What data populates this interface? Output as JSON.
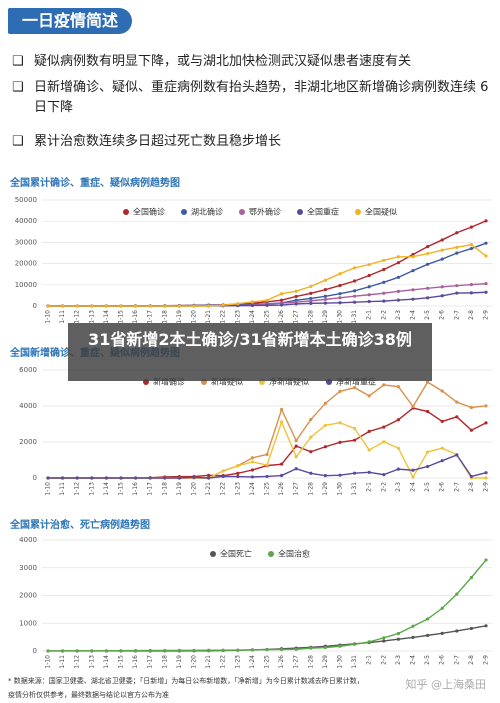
{
  "header": {
    "title": "一日疫情简述"
  },
  "bullets": [
    "疑似病例数有明显下降，或与湖北加快检测武汉疑似患者速度有关",
    "日新增确诊、疑似、重症病例数有抬头趋势，非湖北地区新增确诊病例数连续 6 日下降",
    "累计治愈数连续多日超过死亡数且稳步增长"
  ],
  "banner": "31省新增2本土确诊/31省新增本土确诊38例",
  "footnote": [
    "* 数据来源：国家卫健委、湖北省卫健委；「日新增」为每日公布新增数，「净新增」为今日累计数减去昨日累计数，",
    "疫情分析仅供参考，最终数据与结论以官方公布为准"
  ],
  "watermark": "知乎 @上海桑田",
  "chart_data": [
    {
      "type": "line",
      "title": "全国累计确诊、重症、疑似病例趋势图",
      "categories": [
        "1-10",
        "1-11",
        "1-12",
        "1-13",
        "1-14",
        "1-15",
        "1-16",
        "1-17",
        "1-18",
        "1-19",
        "1-20",
        "1-21",
        "1-22",
        "1-23",
        "1-24",
        "1-25",
        "1-26",
        "1-27",
        "1-28",
        "1-29",
        "1-30",
        "1-31",
        "2-1",
        "2-2",
        "2-3",
        "2-4",
        "2-5",
        "2-6",
        "2-7",
        "2-8",
        "2-9"
      ],
      "ylim": [
        0,
        50000
      ],
      "yticks": [
        0,
        10000,
        20000,
        30000,
        40000,
        50000
      ],
      "grid": true,
      "series": [
        {
          "name": "全国确诊",
          "color": "#b3262b",
          "values": [
            41,
            41,
            41,
            41,
            41,
            41,
            45,
            62,
            121,
            198,
            291,
            440,
            571,
            830,
            1287,
            1975,
            2744,
            4515,
            5974,
            7711,
            9692,
            11791,
            14380,
            17205,
            20438,
            24324,
            28018,
            31161,
            34546,
            37198,
            40171
          ]
        },
        {
          "name": "湖北确诊",
          "color": "#3c5aa6",
          "values": [
            41,
            41,
            41,
            41,
            41,
            41,
            45,
            62,
            121,
            198,
            270,
            375,
            444,
            549,
            729,
            1052,
            1423,
            2714,
            3554,
            4586,
            5806,
            7153,
            9074,
            11177,
            13522,
            16678,
            19665,
            22112,
            24953,
            27100,
            29631
          ]
        },
        {
          "name": "鄂外确诊",
          "color": "#a8619a",
          "values": [
            0,
            0,
            0,
            0,
            0,
            0,
            0,
            0,
            0,
            0,
            21,
            65,
            127,
            281,
            558,
            923,
            1321,
            1801,
            2420,
            3125,
            3886,
            4638,
            5306,
            6028,
            6916,
            7646,
            8353,
            9049,
            9593,
            10098,
            10540
          ]
        },
        {
          "name": "全国重症",
          "color": "#5b4a9b",
          "values": [
            0,
            0,
            0,
            0,
            0,
            0,
            0,
            0,
            0,
            0,
            35,
            9,
            95,
            177,
            237,
            324,
            461,
            976,
            1239,
            1370,
            1527,
            1795,
            2110,
            2296,
            2788,
            3219,
            3859,
            4821,
            6101,
            6188,
            6484
          ]
        },
        {
          "name": "全国疑似",
          "color": "#f0b323",
          "values": [
            0,
            0,
            0,
            0,
            0,
            0,
            0,
            0,
            0,
            0,
            0,
            0,
            393,
            1072,
            1965,
            2684,
            5794,
            6973,
            9239,
            12167,
            15238,
            17988,
            19544,
            21558,
            23214,
            23260,
            24702,
            26359,
            27657,
            28942,
            23589
          ]
        }
      ]
    },
    {
      "type": "line",
      "title": "全国新增确诊、重症、疑似病例趋势图",
      "categories": [
        "1-10",
        "1-11",
        "1-12",
        "1-13",
        "1-14",
        "1-15",
        "1-16",
        "1-17",
        "1-18",
        "1-19",
        "1-20",
        "1-21",
        "1-22",
        "1-23",
        "1-24",
        "1-25",
        "1-26",
        "1-27",
        "1-28",
        "1-29",
        "1-30",
        "1-31",
        "2-1",
        "2-2",
        "2-3",
        "2-4",
        "2-5",
        "2-6",
        "2-7",
        "2-8",
        "2-9"
      ],
      "ylim": [
        0,
        6000
      ],
      "yticks": [
        0,
        2000,
        4000,
        6000
      ],
      "grid": true,
      "series": [
        {
          "name": "新增确诊",
          "color": "#b3262b",
          "values": [
            0,
            0,
            0,
            0,
            0,
            0,
            4,
            17,
            59,
            77,
            77,
            149,
            131,
            259,
            444,
            688,
            769,
            1771,
            1459,
            1737,
            1982,
            2102,
            2590,
            2829,
            3235,
            3887,
            3694,
            3143,
            3399,
            2656,
            3062
          ]
        },
        {
          "name": "新增疑似",
          "color": "#d9904a",
          "values": [
            0,
            0,
            0,
            0,
            0,
            0,
            0,
            0,
            0,
            0,
            0,
            0,
            393,
            680,
            1118,
            1309,
            3806,
            2077,
            3248,
            4148,
            4812,
            5019,
            4562,
            5173,
            5072,
            3971,
            5328,
            4833,
            4214,
            3916,
            4008
          ]
        },
        {
          "name": "净新增疑似",
          "color": "#f0c23a",
          "values": [
            0,
            0,
            0,
            0,
            0,
            0,
            0,
            0,
            0,
            0,
            0,
            0,
            393,
            679,
            893,
            719,
            3110,
            1179,
            2266,
            2928,
            3071,
            2750,
            1556,
            2014,
            1656,
            46,
            1442,
            1657,
            1298,
            0,
            0
          ]
        },
        {
          "name": "净新增重症",
          "color": "#5b4a9b",
          "values": [
            0,
            0,
            0,
            0,
            0,
            0,
            0,
            0,
            0,
            0,
            35,
            0,
            86,
            82,
            60,
            87,
            137,
            515,
            263,
            131,
            157,
            268,
            315,
            186,
            492,
            431,
            640,
            962,
            1280,
            87,
            296
          ]
        }
      ]
    },
    {
      "type": "line",
      "title": "全国累计治愈、死亡病例趋势图",
      "categories": [
        "1-10",
        "1-11",
        "1-12",
        "1-13",
        "1-14",
        "1-15",
        "1-16",
        "1-17",
        "1-18",
        "1-19",
        "1-20",
        "1-21",
        "1-22",
        "1-23",
        "1-24",
        "1-25",
        "1-26",
        "1-27",
        "1-28",
        "1-29",
        "1-30",
        "1-31",
        "2-1",
        "2-2",
        "2-3",
        "2-4",
        "2-5",
        "2-6",
        "2-7",
        "2-8",
        "2-9"
      ],
      "ylim": [
        0,
        4000
      ],
      "yticks": [
        0,
        1000,
        2000,
        3000,
        4000
      ],
      "grid": true,
      "series": [
        {
          "name": "全国死亡",
          "color": "#555555",
          "values": [
            1,
            1,
            1,
            1,
            1,
            2,
            2,
            2,
            3,
            3,
            6,
            9,
            17,
            25,
            41,
            56,
            80,
            106,
            132,
            170,
            213,
            259,
            304,
            361,
            425,
            490,
            563,
            636,
            722,
            811,
            908
          ]
        },
        {
          "name": "全国治愈",
          "color": "#5aa84a",
          "values": [
            2,
            6,
            7,
            7,
            7,
            12,
            15,
            19,
            19,
            25,
            25,
            28,
            28,
            34,
            38,
            49,
            51,
            60,
            103,
            124,
            171,
            243,
            328,
            475,
            632,
            892,
            1153,
            1540,
            2050,
            2649,
            3281
          ]
        }
      ]
    }
  ]
}
